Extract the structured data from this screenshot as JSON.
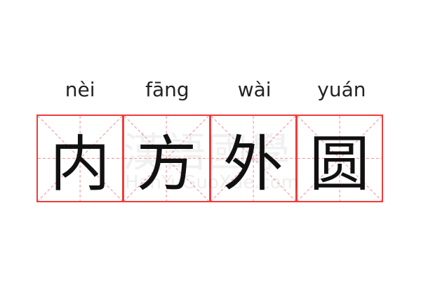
{
  "entries": [
    {
      "pinyin": "nèi",
      "char": "内"
    },
    {
      "pinyin": "fāng",
      "char": "方"
    },
    {
      "pinyin": "wài",
      "char": "外"
    },
    {
      "pinyin": "yuán",
      "char": "圆"
    }
  ],
  "watermark": {
    "logo": "漢語國學",
    "site": "HanYuGuoXue.com"
  },
  "colors": {
    "border": "#f03c3c",
    "guides": "#f7a0a0",
    "text": "#111111"
  }
}
